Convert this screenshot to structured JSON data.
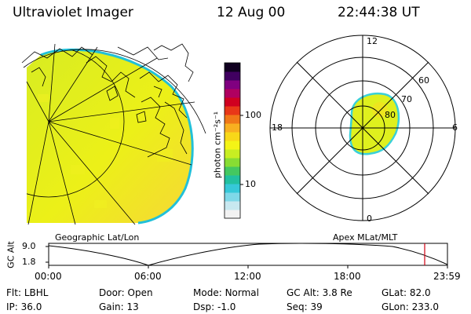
{
  "header": {
    "instrument": "Ultraviolet Imager",
    "date": "12 Aug 00",
    "time": "22:44:38 UT"
  },
  "colorbar": {
    "unit_label": "photon cm⁻²s⁻¹",
    "ticks": [
      "100",
      "10"
    ],
    "colors": [
      "#f2f2f2",
      "#c8e8f0",
      "#7fd8e8",
      "#36c8d8",
      "#22c0a0",
      "#44c860",
      "#88dd33",
      "#c8ee22",
      "#f4f416",
      "#f8d818",
      "#f8b020",
      "#f07818",
      "#e83818",
      "#d00020",
      "#b00060",
      "#800080",
      "#400060",
      "#100020"
    ]
  },
  "polar": {
    "mlt_labels": [
      "12",
      "18",
      "6",
      "0"
    ],
    "lat_labels": [
      "60",
      "70",
      "80"
    ]
  },
  "map_labels": {
    "left": "Geographic Lat/Lon",
    "right": "Apex MLat/MLT"
  },
  "alt_plot": {
    "axis_title": "GC Alt",
    "y_ticks": [
      "9.0",
      "1.8"
    ],
    "x_ticks": [
      "00:00",
      "06:00",
      "12:00",
      "18:00",
      "23:59"
    ]
  },
  "info": {
    "row1": [
      {
        "label": "Flt:",
        "value": "LBHL"
      },
      {
        "label": "Door:",
        "value": "Open"
      },
      {
        "label": "Mode:",
        "value": "Normal"
      },
      {
        "label": "GC Alt:",
        "value": "3.8 Re"
      },
      {
        "label": "GLat:",
        "value": "82.0"
      }
    ],
    "row2": [
      {
        "label": "IP:",
        "value": "36.0"
      },
      {
        "label": "Gain:",
        "value": "13"
      },
      {
        "label": "Dsp:",
        "value": "-1.0"
      },
      {
        "label": "Seq:",
        "value": "39"
      },
      {
        "label": "GLon:",
        "value": "233.0"
      }
    ]
  }
}
